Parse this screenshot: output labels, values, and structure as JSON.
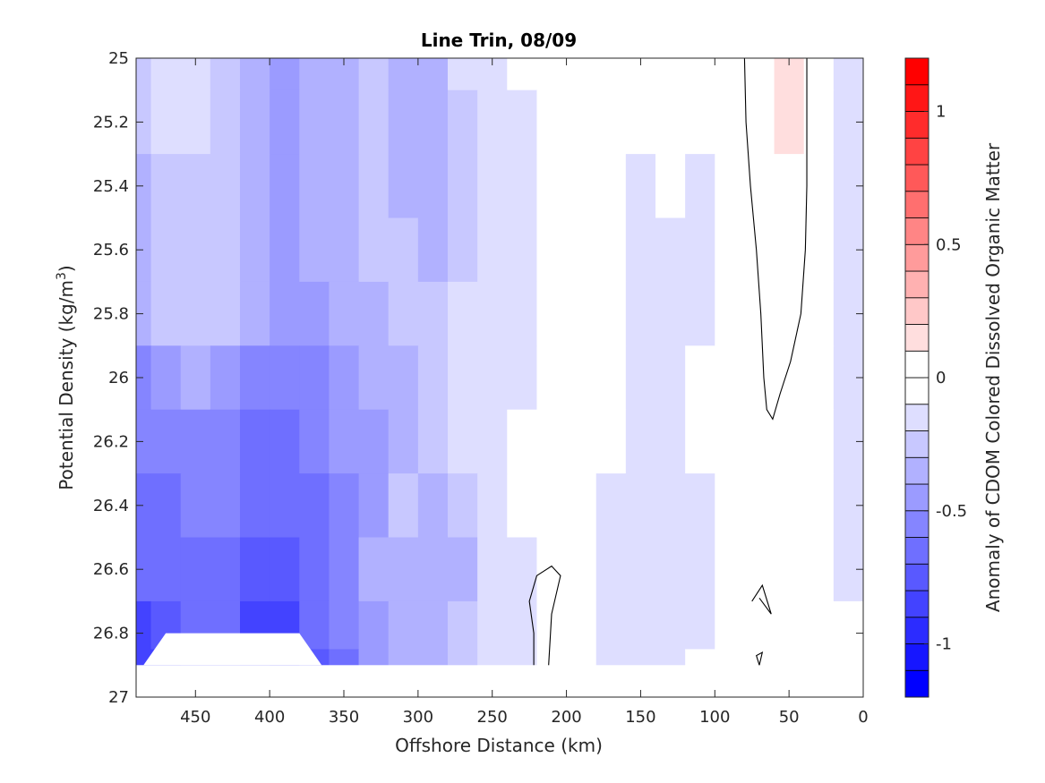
{
  "chart_data": {
    "type": "heatmap",
    "title": "Line Trin, 08/09",
    "xlabel": "Offshore Distance (km)",
    "ylabel_main": "Potential Density (kg/m",
    "ylabel_sup": "3",
    "ylabel_close": ")",
    "xlim": [
      490,
      0
    ],
    "ylim": [
      25,
      27
    ],
    "x_reversed": true,
    "y_reversed": true,
    "x_ticks": [
      450,
      400,
      350,
      300,
      250,
      200,
      150,
      100,
      50,
      0
    ],
    "y_ticks": [
      25,
      25.2,
      25.4,
      25.6,
      25.8,
      26,
      26.2,
      26.4,
      26.6,
      26.8,
      27
    ],
    "x_tick_labels": [
      "450",
      "400",
      "350",
      "300",
      "250",
      "200",
      "150",
      "100",
      "50",
      "0"
    ],
    "y_tick_labels": [
      "25",
      "25.2",
      "25.4",
      "25.6",
      "25.8",
      "26",
      "26.2",
      "26.4",
      "26.6",
      "26.8",
      "27"
    ],
    "colorbar": {
      "label": "Anomaly of CDOM Colored Dissolved Organic Matter",
      "clim": [
        -1.2,
        1.2
      ],
      "levels": [
        -1.2,
        -1.1,
        -1.0,
        -0.9,
        -0.8,
        -0.7,
        -0.6,
        -0.5,
        -0.4,
        -0.3,
        -0.2,
        -0.1,
        0,
        0.1,
        0.2,
        0.3,
        0.4,
        0.5,
        0.6,
        0.7,
        0.8,
        0.9,
        1.0,
        1.1,
        1.2
      ],
      "ticks": [
        -1,
        -0.5,
        0,
        0.5,
        1
      ],
      "tick_labels": [
        "-1",
        "-0.5",
        "0",
        "0.5",
        "1"
      ],
      "colormap": "blue-white-red"
    },
    "x": [
      490,
      470,
      450,
      430,
      410,
      390,
      370,
      350,
      330,
      310,
      290,
      270,
      250,
      230,
      210,
      190,
      170,
      150,
      130,
      110,
      90,
      70,
      50,
      30,
      10
    ],
    "y": [
      25.0,
      25.2,
      25.4,
      25.6,
      25.8,
      26.0,
      26.2,
      26.4,
      26.6,
      26.8,
      26.9
    ],
    "z": [
      [
        -0.25,
        -0.15,
        -0.15,
        -0.25,
        -0.35,
        -0.4,
        -0.35,
        -0.3,
        -0.25,
        -0.3,
        -0.35,
        -0.2,
        -0.15,
        -0.05,
        0.0,
        0.0,
        0.0,
        -0.05,
        -0.05,
        -0.05,
        0.0,
        0.0,
        0.1,
        0.0,
        -0.15
      ],
      [
        -0.25,
        -0.2,
        -0.2,
        -0.25,
        -0.35,
        -0.4,
        -0.35,
        -0.3,
        -0.25,
        -0.3,
        -0.35,
        -0.25,
        -0.15,
        -0.1,
        0.0,
        0.0,
        -0.05,
        -0.05,
        0.0,
        -0.05,
        0.0,
        0.0,
        0.1,
        0.0,
        -0.15
      ],
      [
        -0.3,
        -0.25,
        -0.25,
        -0.25,
        -0.35,
        -0.4,
        -0.35,
        -0.3,
        -0.25,
        -0.3,
        -0.35,
        -0.25,
        -0.15,
        -0.1,
        -0.05,
        -0.05,
        -0.05,
        -0.1,
        -0.05,
        -0.1,
        0.0,
        0.0,
        0.05,
        0.0,
        -0.15
      ],
      [
        -0.35,
        -0.25,
        -0.25,
        -0.25,
        -0.3,
        -0.4,
        -0.35,
        -0.3,
        -0.25,
        -0.25,
        -0.3,
        -0.25,
        -0.15,
        -0.1,
        -0.05,
        -0.05,
        -0.05,
        -0.1,
        -0.1,
        -0.1,
        0.0,
        0.0,
        0.0,
        0.0,
        -0.15
      ],
      [
        -0.35,
        -0.25,
        -0.25,
        -0.25,
        -0.35,
        -0.45,
        -0.4,
        -0.3,
        -0.3,
        -0.25,
        -0.25,
        -0.2,
        -0.15,
        -0.1,
        -0.05,
        -0.05,
        -0.05,
        -0.1,
        -0.1,
        -0.1,
        0.0,
        0.0,
        0.0,
        0.0,
        -0.15
      ],
      [
        -0.5,
        -0.4,
        -0.35,
        -0.45,
        -0.5,
        -0.55,
        -0.5,
        -0.4,
        -0.35,
        -0.3,
        -0.25,
        -0.2,
        -0.15,
        -0.1,
        -0.05,
        -0.05,
        -0.05,
        -0.1,
        -0.1,
        -0.05,
        0.0,
        0.0,
        0.0,
        0.0,
        -0.1
      ],
      [
        -0.55,
        -0.55,
        -0.55,
        -0.5,
        -0.6,
        -0.65,
        -0.55,
        -0.45,
        -0.4,
        -0.3,
        -0.25,
        -0.2,
        -0.15,
        -0.05,
        -0.05,
        -0.05,
        -0.05,
        -0.1,
        -0.1,
        -0.05,
        0.0,
        0.0,
        0.0,
        -0.05,
        -0.1
      ],
      [
        -0.6,
        -0.6,
        -0.55,
        -0.55,
        -0.65,
        -0.7,
        -0.6,
        -0.5,
        -0.4,
        -0.25,
        -0.3,
        -0.25,
        -0.15,
        -0.05,
        -0.05,
        -0.05,
        -0.1,
        -0.15,
        -0.15,
        -0.1,
        -0.05,
        0.0,
        0.0,
        -0.05,
        -0.1
      ],
      [
        -0.7,
        -0.65,
        -0.6,
        -0.65,
        -0.75,
        -0.75,
        -0.65,
        -0.5,
        -0.35,
        -0.3,
        -0.35,
        -0.3,
        -0.2,
        -0.1,
        0.0,
        -0.05,
        -0.1,
        -0.15,
        -0.15,
        -0.1,
        -0.05,
        0.0,
        0.0,
        -0.05,
        -0.1
      ],
      [
        -0.8,
        -0.75,
        -0.7,
        -0.7,
        -0.8,
        -0.85,
        -0.7,
        -0.55,
        -0.4,
        -0.3,
        -0.3,
        -0.25,
        -0.2,
        -0.1,
        0.0,
        -0.05,
        -0.1,
        -0.1,
        -0.15,
        -0.1,
        -0.05,
        0.0,
        0.0,
        0.0,
        -0.05
      ],
      [
        -0.85,
        -0.8,
        -0.75,
        -0.75,
        -0.85,
        -0.9,
        -0.75,
        -0.6,
        -0.45,
        -0.35,
        -0.3,
        -0.25,
        -0.2,
        -0.1,
        0.0,
        -0.05,
        -0.1,
        -0.1,
        -0.1,
        -0.05,
        -0.05,
        0.0,
        0.0,
        0.0,
        -0.05
      ]
    ],
    "masked_region": {
      "x": [
        485,
        470,
        380,
        365,
        0
      ],
      "bottom_valid_y": 26.9,
      "note": "white unsampled area"
    },
    "zero_contour_lines": [
      [
        [
          80,
          25.0
        ],
        [
          79,
          25.2
        ],
        [
          76,
          25.4
        ],
        [
          72,
          25.6
        ],
        [
          69,
          25.8
        ],
        [
          67,
          26.0
        ],
        [
          65,
          26.1
        ],
        [
          61,
          26.13
        ],
        [
          56,
          26.05
        ],
        [
          49,
          25.95
        ],
        [
          42,
          25.8
        ],
        [
          39,
          25.6
        ],
        [
          38,
          25.4
        ],
        [
          38,
          25.2
        ],
        [
          38,
          25.0
        ]
      ],
      [
        [
          222,
          26.9
        ],
        [
          222,
          26.8
        ],
        [
          225,
          26.7
        ],
        [
          220,
          26.62
        ],
        [
          210,
          26.59
        ],
        [
          204,
          26.62
        ],
        [
          210,
          26.74
        ],
        [
          212,
          26.9
        ]
      ],
      [
        [
          75,
          26.7
        ],
        [
          68,
          26.65
        ],
        [
          62,
          26.74
        ],
        [
          70,
          26.69
        ]
      ],
      [
        [
          70,
          26.9
        ],
        [
          72,
          26.87
        ],
        [
          68,
          26.86
        ],
        [
          70,
          26.9
        ]
      ]
    ]
  }
}
